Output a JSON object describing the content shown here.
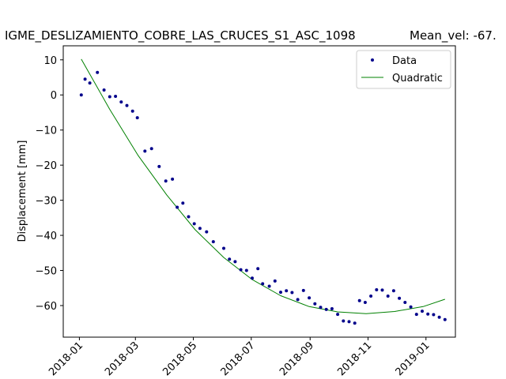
{
  "chart_data": {
    "type": "scatter",
    "title": "IGME_DESLIZAMIENTO_COBRE_LAS_CRUCES_S1_ASC_1098",
    "subtitle": "Mean_vel: -67.",
    "xlabel": "",
    "ylabel": "Displacement [mm]",
    "x_type": "date",
    "xlim": [
      "2017-12-15",
      "2019-02-01"
    ],
    "ylim": [
      -69,
      14
    ],
    "x_ticks": [
      "2018-01",
      "2018-03",
      "2018-05",
      "2018-07",
      "2018-09",
      "2018-11",
      "2019-01"
    ],
    "y_ticks": [
      10,
      0,
      -10,
      -20,
      -30,
      -40,
      -50,
      -60
    ],
    "legend": {
      "position": "top-right",
      "entries": [
        "Data",
        "Quadratic"
      ]
    },
    "grid": false,
    "colors": {
      "data": "#00008b",
      "fit": "#008000"
    },
    "series": [
      {
        "name": "Data",
        "marker": "point",
        "points": [
          [
            "2018-01-03",
            0
          ],
          [
            "2018-01-07",
            4.5
          ],
          [
            "2018-01-12",
            3.4
          ],
          [
            "2018-01-20",
            6.4
          ],
          [
            "2018-01-27",
            1.4
          ],
          [
            "2018-02-02",
            -0.5
          ],
          [
            "2018-02-08",
            -0.4
          ],
          [
            "2018-02-14",
            -2
          ],
          [
            "2018-02-20",
            -3
          ],
          [
            "2018-02-26",
            -4.6
          ],
          [
            "2018-03-03",
            -6.5
          ],
          [
            "2018-03-11",
            -16
          ],
          [
            "2018-03-18",
            -15.3
          ],
          [
            "2018-03-26",
            -20.4
          ],
          [
            "2018-04-02",
            -24.5
          ],
          [
            "2018-04-09",
            -24
          ],
          [
            "2018-04-14",
            -32
          ],
          [
            "2018-04-20",
            -30.8
          ],
          [
            "2018-04-26",
            -34.7
          ],
          [
            "2018-05-02",
            -36.7
          ],
          [
            "2018-05-08",
            -38
          ],
          [
            "2018-05-15",
            -39
          ],
          [
            "2018-05-22",
            -41.8
          ],
          [
            "2018-06-02",
            -43.7
          ],
          [
            "2018-06-08",
            -46.8
          ],
          [
            "2018-06-14",
            -47.5
          ],
          [
            "2018-06-20",
            -49.8
          ],
          [
            "2018-06-26",
            -50
          ],
          [
            "2018-07-02",
            -52.2
          ],
          [
            "2018-07-08",
            -49.5
          ],
          [
            "2018-07-13",
            -53.8
          ],
          [
            "2018-07-20",
            -54.5
          ],
          [
            "2018-07-26",
            -53
          ],
          [
            "2018-08-01",
            -56.2
          ],
          [
            "2018-08-07",
            -55.8
          ],
          [
            "2018-08-13",
            -56.3
          ],
          [
            "2018-08-19",
            -58.3
          ],
          [
            "2018-08-25",
            -55.7
          ],
          [
            "2018-08-31",
            -57.8
          ],
          [
            "2018-09-06",
            -59.5
          ],
          [
            "2018-09-12",
            -60.5
          ],
          [
            "2018-09-18",
            -61.1
          ],
          [
            "2018-09-24",
            -60.9
          ],
          [
            "2018-09-30",
            -62.5
          ],
          [
            "2018-10-06",
            -64.4
          ],
          [
            "2018-10-12",
            -64.6
          ],
          [
            "2018-10-18",
            -65
          ],
          [
            "2018-10-23",
            -58.6
          ],
          [
            "2018-10-29",
            -59.1
          ],
          [
            "2018-11-04",
            -57.3
          ],
          [
            "2018-11-10",
            -55.5
          ],
          [
            "2018-11-16",
            -55.6
          ],
          [
            "2018-11-22",
            -57.3
          ],
          [
            "2018-11-28",
            -55.8
          ],
          [
            "2018-12-04",
            -57.9
          ],
          [
            "2018-12-10",
            -59.1
          ],
          [
            "2018-12-16",
            -60.4
          ],
          [
            "2018-12-22",
            -62.5
          ],
          [
            "2018-12-28",
            -61.6
          ],
          [
            "2019-01-03",
            -62.4
          ],
          [
            "2019-01-09",
            -62.6
          ],
          [
            "2019-01-15",
            -63.3
          ],
          [
            "2019-01-21",
            -64
          ]
        ]
      },
      {
        "name": "Quadratic",
        "marker": "line",
        "points": [
          [
            "2018-01-03",
            10.2
          ],
          [
            "2018-02-02",
            -4.1
          ],
          [
            "2018-03-04",
            -17.3
          ],
          [
            "2018-04-03",
            -28.5
          ],
          [
            "2018-05-03",
            -38.4
          ],
          [
            "2018-06-02",
            -46.3
          ],
          [
            "2018-07-02",
            -52.6
          ],
          [
            "2018-08-01",
            -57.2
          ],
          [
            "2018-08-31",
            -60.3
          ],
          [
            "2018-09-30",
            -61.8
          ],
          [
            "2018-10-30",
            -62.3
          ],
          [
            "2018-11-29",
            -61.7
          ],
          [
            "2018-12-29",
            -60.3
          ],
          [
            "2019-01-21",
            -58.2
          ]
        ]
      }
    ]
  }
}
